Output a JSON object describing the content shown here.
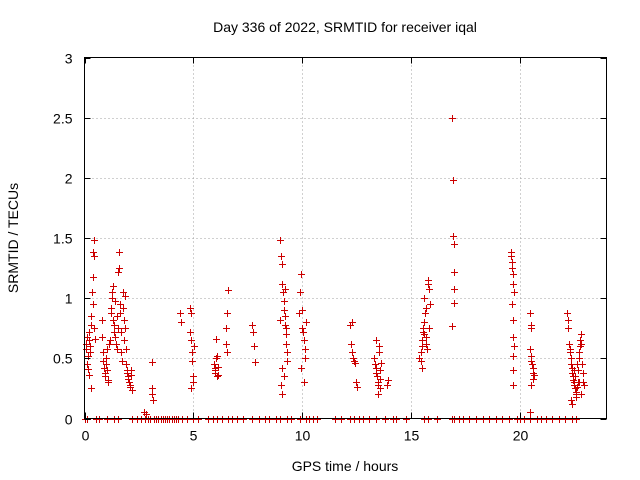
{
  "chart_data": {
    "type": "scatter",
    "title": "Day 336 of 2022, SRMTID for receiver iqal",
    "xlabel": "GPS time / hours",
    "ylabel": "SRMTID / TECUs",
    "xlim": [
      0,
      24
    ],
    "ylim": [
      0,
      3
    ],
    "xticks": [
      0,
      5,
      10,
      15,
      20
    ],
    "yticks": [
      0,
      0.5,
      1,
      1.5,
      2,
      2.5,
      3
    ],
    "grid": true,
    "marker": "+",
    "color": "#cc0000",
    "series": [
      {
        "name": "SRMTID",
        "points": [
          [
            0.05,
            0.62
          ],
          [
            0.08,
            0.58
          ],
          [
            0.1,
            0.45
          ],
          [
            0.12,
            0.68
          ],
          [
            0.15,
            0.52
          ],
          [
            0.18,
            0.41
          ],
          [
            0.2,
            0.72
          ],
          [
            0.22,
            0.65
          ],
          [
            0.25,
            0.55
          ],
          [
            0.27,
            0.6
          ],
          [
            0.3,
            0.85
          ],
          [
            0.32,
            0.78
          ],
          [
            0.35,
            1.05
          ],
          [
            0.37,
            0.95
          ],
          [
            0.38,
            1.18
          ],
          [
            0.4,
            1.38
          ],
          [
            0.42,
            1.48
          ],
          [
            0.43,
            1.35
          ],
          [
            0.45,
            0.75
          ],
          [
            0.47,
            0.66
          ],
          [
            0.3,
            0.25
          ],
          [
            0.2,
            0.36
          ],
          [
            0.8,
            0.82
          ],
          [
            0.82,
            0.68
          ],
          [
            0.85,
            0.55
          ],
          [
            0.87,
            0.48
          ],
          [
            0.9,
            0.42
          ],
          [
            0.92,
            0.38
          ],
          [
            0.95,
            0.35
          ],
          [
            0.97,
            0.5
          ],
          [
            1.0,
            0.45
          ],
          [
            1.02,
            0.4
          ],
          [
            1.05,
            0.58
          ],
          [
            1.08,
            0.32
          ],
          [
            1.1,
            0.3
          ],
          [
            1.12,
            0.62
          ],
          [
            1.15,
            0.65
          ],
          [
            1.2,
            0.88
          ],
          [
            1.22,
            0.92
          ],
          [
            1.25,
            1.0
          ],
          [
            1.27,
            1.05
          ],
          [
            1.3,
            1.1
          ],
          [
            1.32,
            0.82
          ],
          [
            1.35,
            0.78
          ],
          [
            1.37,
            0.72
          ],
          [
            1.4,
            0.98
          ],
          [
            1.42,
            0.68
          ],
          [
            1.45,
            0.62
          ],
          [
            1.48,
            0.58
          ],
          [
            1.5,
            0.85
          ],
          [
            1.52,
            0.75
          ],
          [
            1.55,
            1.22
          ],
          [
            1.57,
            1.25
          ],
          [
            1.6,
            1.38
          ],
          [
            1.62,
            0.95
          ],
          [
            1.65,
            0.88
          ],
          [
            1.67,
            0.72
          ],
          [
            1.7,
            0.55
          ],
          [
            1.72,
            0.48
          ],
          [
            1.75,
            1.05
          ],
          [
            1.78,
            0.92
          ],
          [
            1.8,
            0.65
          ],
          [
            1.82,
            0.82
          ],
          [
            1.85,
            1.02
          ],
          [
            1.87,
            0.75
          ],
          [
            1.9,
            0.58
          ],
          [
            1.92,
            0.45
          ],
          [
            1.95,
            0.4
          ],
          [
            1.97,
            0.38
          ],
          [
            2.0,
            0.35
          ],
          [
            2.02,
            0.33
          ],
          [
            2.05,
            0.3
          ],
          [
            2.07,
            0.28
          ],
          [
            2.1,
            0.26
          ],
          [
            2.12,
            0.4
          ],
          [
            2.15,
            0.36
          ],
          [
            2.17,
            0.24
          ],
          [
            2.75,
            0.05
          ],
          [
            2.85,
            0.04
          ],
          [
            3.1,
            0.25
          ],
          [
            3.12,
            0.2
          ],
          [
            3.15,
            0.15
          ],
          [
            3.1,
            0.47
          ],
          [
            4.4,
            0.88
          ],
          [
            4.45,
            0.8
          ],
          [
            4.85,
            0.92
          ],
          [
            4.88,
            0.88
          ],
          [
            4.9,
            0.65
          ],
          [
            4.92,
            0.55
          ],
          [
            4.95,
            0.48
          ],
          [
            4.97,
            0.35
          ],
          [
            4.9,
            0.25
          ],
          [
            5.0,
            0.3
          ],
          [
            5.05,
            0.6
          ],
          [
            4.85,
            0.72
          ],
          [
            5.95,
            0.45
          ],
          [
            5.98,
            0.42
          ],
          [
            6.0,
            0.4
          ],
          [
            6.02,
            0.38
          ],
          [
            6.05,
            0.5
          ],
          [
            6.07,
            0.35
          ],
          [
            6.1,
            0.52
          ],
          [
            6.12,
            0.36
          ],
          [
            6.05,
            0.66
          ],
          [
            6.15,
            0.43
          ],
          [
            6.55,
            0.88
          ],
          [
            6.6,
            1.07
          ],
          [
            6.5,
            0.75
          ],
          [
            6.52,
            0.62
          ],
          [
            6.55,
            0.55
          ],
          [
            7.7,
            0.78
          ],
          [
            7.75,
            0.72
          ],
          [
            7.8,
            0.6
          ],
          [
            7.85,
            0.47
          ],
          [
            9.0,
            1.48
          ],
          [
            9.05,
            1.35
          ],
          [
            9.1,
            1.28
          ],
          [
            9.1,
            1.12
          ],
          [
            9.12,
            1.05
          ],
          [
            9.15,
            0.98
          ],
          [
            9.15,
            0.9
          ],
          [
            9.2,
            0.85
          ],
          [
            9.22,
            0.78
          ],
          [
            9.25,
            0.7
          ],
          [
            9.25,
            0.62
          ],
          [
            9.3,
            0.55
          ],
          [
            9.32,
            0.48
          ],
          [
            9.1,
            0.42
          ],
          [
            9.15,
            0.35
          ],
          [
            9.05,
            0.28
          ],
          [
            9.1,
            0.2
          ],
          [
            9.2,
            1.08
          ],
          [
            9.25,
            0.75
          ],
          [
            9.0,
            0.82
          ],
          [
            9.85,
            0.88
          ],
          [
            9.9,
            1.05
          ],
          [
            9.95,
            1.2
          ],
          [
            10.0,
            0.9
          ],
          [
            10.02,
            0.75
          ],
          [
            10.05,
            0.72
          ],
          [
            10.1,
            0.65
          ],
          [
            10.12,
            0.58
          ],
          [
            10.15,
            0.5
          ],
          [
            10.2,
            0.8
          ],
          [
            10.1,
            0.3
          ],
          [
            9.95,
            0.42
          ],
          [
            12.2,
            0.78
          ],
          [
            12.25,
            0.62
          ],
          [
            12.3,
            0.55
          ],
          [
            12.35,
            0.5
          ],
          [
            12.4,
            0.48
          ],
          [
            12.45,
            0.46
          ],
          [
            12.5,
            0.3
          ],
          [
            12.55,
            0.26
          ],
          [
            12.32,
            0.8
          ],
          [
            13.3,
            0.5
          ],
          [
            13.35,
            0.45
          ],
          [
            13.4,
            0.42
          ],
          [
            13.42,
            0.38
          ],
          [
            13.45,
            0.35
          ],
          [
            13.48,
            0.3
          ],
          [
            13.5,
            0.28
          ],
          [
            13.52,
            0.55
          ],
          [
            13.55,
            0.6
          ],
          [
            13.58,
            0.25
          ],
          [
            13.6,
            0.4
          ],
          [
            13.65,
            0.46
          ],
          [
            13.38,
            0.65
          ],
          [
            13.5,
            0.2
          ],
          [
            13.6,
            0.33
          ],
          [
            13.95,
            0.32
          ],
          [
            13.9,
            0.28
          ],
          [
            15.4,
            0.5
          ],
          [
            15.45,
            0.55
          ],
          [
            15.5,
            0.6
          ],
          [
            15.52,
            0.65
          ],
          [
            15.55,
            0.72
          ],
          [
            15.58,
            0.75
          ],
          [
            15.6,
            0.7
          ],
          [
            15.62,
            0.8
          ],
          [
            15.65,
            0.88
          ],
          [
            15.68,
            0.92
          ],
          [
            15.7,
            0.68
          ],
          [
            15.72,
            0.62
          ],
          [
            15.75,
            0.58
          ],
          [
            15.78,
            1.12
          ],
          [
            15.8,
            1.15
          ],
          [
            15.82,
            1.08
          ],
          [
            15.85,
            0.75
          ],
          [
            15.88,
            0.95
          ],
          [
            15.5,
            0.42
          ],
          [
            15.45,
            0.48
          ],
          [
            15.6,
            1.0
          ],
          [
            16.9,
            2.5
          ],
          [
            16.92,
            1.98
          ],
          [
            16.95,
            1.52
          ],
          [
            16.97,
            1.45
          ],
          [
            17.0,
            1.22
          ],
          [
            16.98,
            1.08
          ],
          [
            17.0,
            0.96
          ],
          [
            16.9,
            0.77
          ],
          [
            19.6,
            1.38
          ],
          [
            19.62,
            1.35
          ],
          [
            19.65,
            1.3
          ],
          [
            19.67,
            1.25
          ],
          [
            19.7,
            1.2
          ],
          [
            19.72,
            1.12
          ],
          [
            19.75,
            1.05
          ],
          [
            19.65,
            0.95
          ],
          [
            19.7,
            0.82
          ],
          [
            19.72,
            0.68
          ],
          [
            19.75,
            0.6
          ],
          [
            19.7,
            0.52
          ],
          [
            19.72,
            0.4
          ],
          [
            19.68,
            0.28
          ],
          [
            20.5,
            0.88
          ],
          [
            20.52,
            0.78
          ],
          [
            20.55,
            0.75
          ],
          [
            20.5,
            0.58
          ],
          [
            20.52,
            0.52
          ],
          [
            20.55,
            0.48
          ],
          [
            20.58,
            0.45
          ],
          [
            20.6,
            0.42
          ],
          [
            20.62,
            0.38
          ],
          [
            20.65,
            0.36
          ],
          [
            20.6,
            0.33
          ],
          [
            20.55,
            0.28
          ],
          [
            20.5,
            0.05
          ],
          [
            22.2,
            0.88
          ],
          [
            22.22,
            0.82
          ],
          [
            22.25,
            0.75
          ],
          [
            22.28,
            0.62
          ],
          [
            22.3,
            0.58
          ],
          [
            22.32,
            0.55
          ],
          [
            22.35,
            0.5
          ],
          [
            22.38,
            0.45
          ],
          [
            22.4,
            0.42
          ],
          [
            22.42,
            0.38
          ],
          [
            22.45,
            0.35
          ],
          [
            22.48,
            0.32
          ],
          [
            22.5,
            0.3
          ],
          [
            22.52,
            0.28
          ],
          [
            22.55,
            0.25
          ],
          [
            22.58,
            0.22
          ],
          [
            22.6,
            0.2
          ],
          [
            22.62,
            0.18
          ],
          [
            22.65,
            0.26
          ],
          [
            22.68,
            0.3
          ],
          [
            22.7,
            0.4
          ],
          [
            22.72,
            0.5
          ],
          [
            22.75,
            0.55
          ],
          [
            22.78,
            0.6
          ],
          [
            22.8,
            0.65
          ],
          [
            22.82,
            0.7
          ],
          [
            22.85,
            0.62
          ],
          [
            22.88,
            0.45
          ],
          [
            22.9,
            0.38
          ],
          [
            22.92,
            0.3
          ],
          [
            22.95,
            0.28
          ],
          [
            22.35,
            0.15
          ],
          [
            22.4,
            0.12
          ],
          [
            22.55,
            0.35
          ],
          [
            22.65,
            0.45
          ],
          [
            22.75,
            0.3
          ],
          [
            22.85,
            0.2
          ],
          [
            22.5,
            0.4
          ]
        ],
        "zero_points": [
          0.0,
          0.1,
          0.55,
          0.65,
          1.05,
          1.35,
          1.55,
          2.2,
          2.4,
          2.6,
          2.8,
          2.9,
          3.0,
          3.2,
          3.3,
          3.4,
          3.5,
          3.6,
          3.7,
          3.8,
          3.9,
          4.0,
          4.1,
          4.2,
          4.3,
          4.5,
          4.7,
          5.0,
          5.2,
          5.7,
          5.9,
          6.1,
          6.3,
          6.6,
          6.8,
          7.0,
          7.3,
          7.7,
          8.0,
          8.3,
          8.5,
          8.8,
          9.0,
          9.3,
          9.5,
          9.9,
          10.2,
          10.3,
          10.5,
          10.7,
          11.5,
          11.8,
          12.2,
          12.4,
          12.6,
          12.8,
          13.1,
          13.4,
          13.8,
          14.2,
          14.3,
          14.8,
          15.6,
          15.8,
          16.2,
          16.9,
          17.0,
          17.2,
          17.4,
          17.7,
          18.0,
          18.3,
          18.6,
          18.9,
          19.2,
          19.5,
          19.9,
          20.0,
          20.2,
          20.5,
          20.8,
          21.0,
          21.2,
          21.5,
          21.8,
          22.1,
          22.4,
          22.6
        ]
      }
    ]
  }
}
